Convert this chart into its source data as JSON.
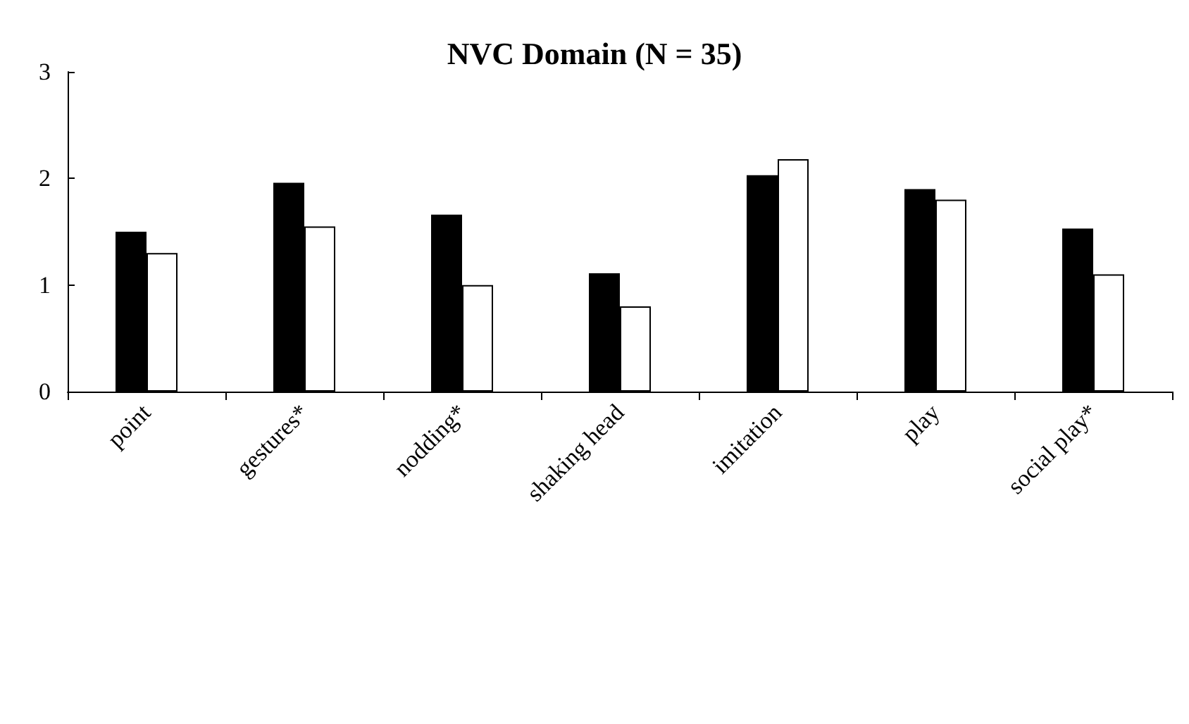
{
  "chart_data": {
    "type": "bar",
    "title": "NVC Domain (N = 35)",
    "categories": [
      "point",
      "gestures*",
      "nodding*",
      "shaking head",
      "imitation",
      "play",
      "social play*"
    ],
    "series": [
      {
        "color": "#000000",
        "values": [
          1.5,
          1.96,
          1.66,
          1.11,
          2.03,
          1.9,
          1.53
        ]
      },
      {
        "color": "#ffffff",
        "values": [
          1.3,
          1.55,
          1.0,
          0.8,
          2.18,
          1.8,
          1.1
        ]
      }
    ],
    "ylim": [
      0,
      3
    ],
    "yticks": [
      0,
      1,
      2,
      3
    ],
    "grid": false
  }
}
